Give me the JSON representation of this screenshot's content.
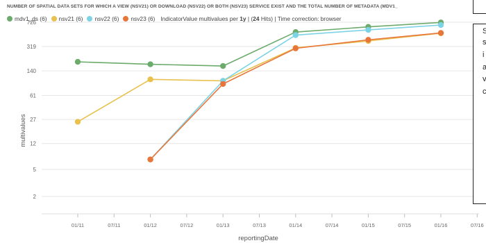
{
  "title": "NUMBER OF SPATIAL DATA SETS FOR WHICH A VIEW (NSV21) OR DOWNLOAD (NSV22) OR BOTH (NSV23) SERVICE EXIST AND THE TOTAL NUMBER OF METADATA (MDV1_",
  "legend": {
    "items": [
      {
        "label": "mdv1_ds (6)",
        "color": "#6cab6c"
      },
      {
        "label": "nsv21 (6)",
        "color": "#e8c14f"
      },
      {
        "label": "nsv22 (6)",
        "color": "#7dd3e6"
      },
      {
        "label": "nsv23 (6)",
        "color": "#e8763a"
      }
    ],
    "info_prefix": "IndicatorValue multivalues per",
    "info_period": "1y",
    "info_mid": "| (",
    "info_hits": "24",
    "info_suffix": "Hits) | Time correction: browser"
  },
  "side_panel": {
    "chars": [
      "S",
      "s",
      "i",
      "a",
      "v",
      "c"
    ]
  },
  "chart_data": {
    "type": "line",
    "xlabel": "reportingDate",
    "ylabel": "multivalues",
    "y_scale": "log",
    "y_ticks": [
      2,
      5,
      12,
      27,
      61,
      140,
      319,
      726
    ],
    "x_ticks": [
      "01/11",
      "07/11",
      "01/12",
      "07/12",
      "01/13",
      "07/13",
      "01/14",
      "07/14",
      "01/15",
      "07/15",
      "01/16",
      "07/16"
    ],
    "grid": "horizontal",
    "series": [
      {
        "name": "mdv1_ds",
        "color": "#6cab6c",
        "x": [
          "01/11",
          "01/12",
          "01/13",
          "01/14",
          "01/15",
          "01/16"
        ],
        "y": [
          190,
          175,
          165,
          520,
          620,
          720
        ]
      },
      {
        "name": "nsv21",
        "color": "#e8c14f",
        "x": [
          "01/11",
          "01/12",
          "01/13",
          "01/14",
          "01/15",
          "01/16"
        ],
        "y": [
          25,
          105,
          100,
          305,
          385,
          500
        ]
      },
      {
        "name": "nsv22",
        "color": "#7dd3e6",
        "x": [
          "01/12",
          "01/13",
          "01/14",
          "01/15",
          "01/16"
        ],
        "y": [
          7,
          100,
          470,
          560,
          660
        ]
      },
      {
        "name": "nsv23",
        "color": "#e8763a",
        "x": [
          "01/12",
          "01/13",
          "01/14",
          "01/15",
          "01/16"
        ],
        "y": [
          7,
          90,
          300,
          400,
          505
        ]
      }
    ]
  }
}
